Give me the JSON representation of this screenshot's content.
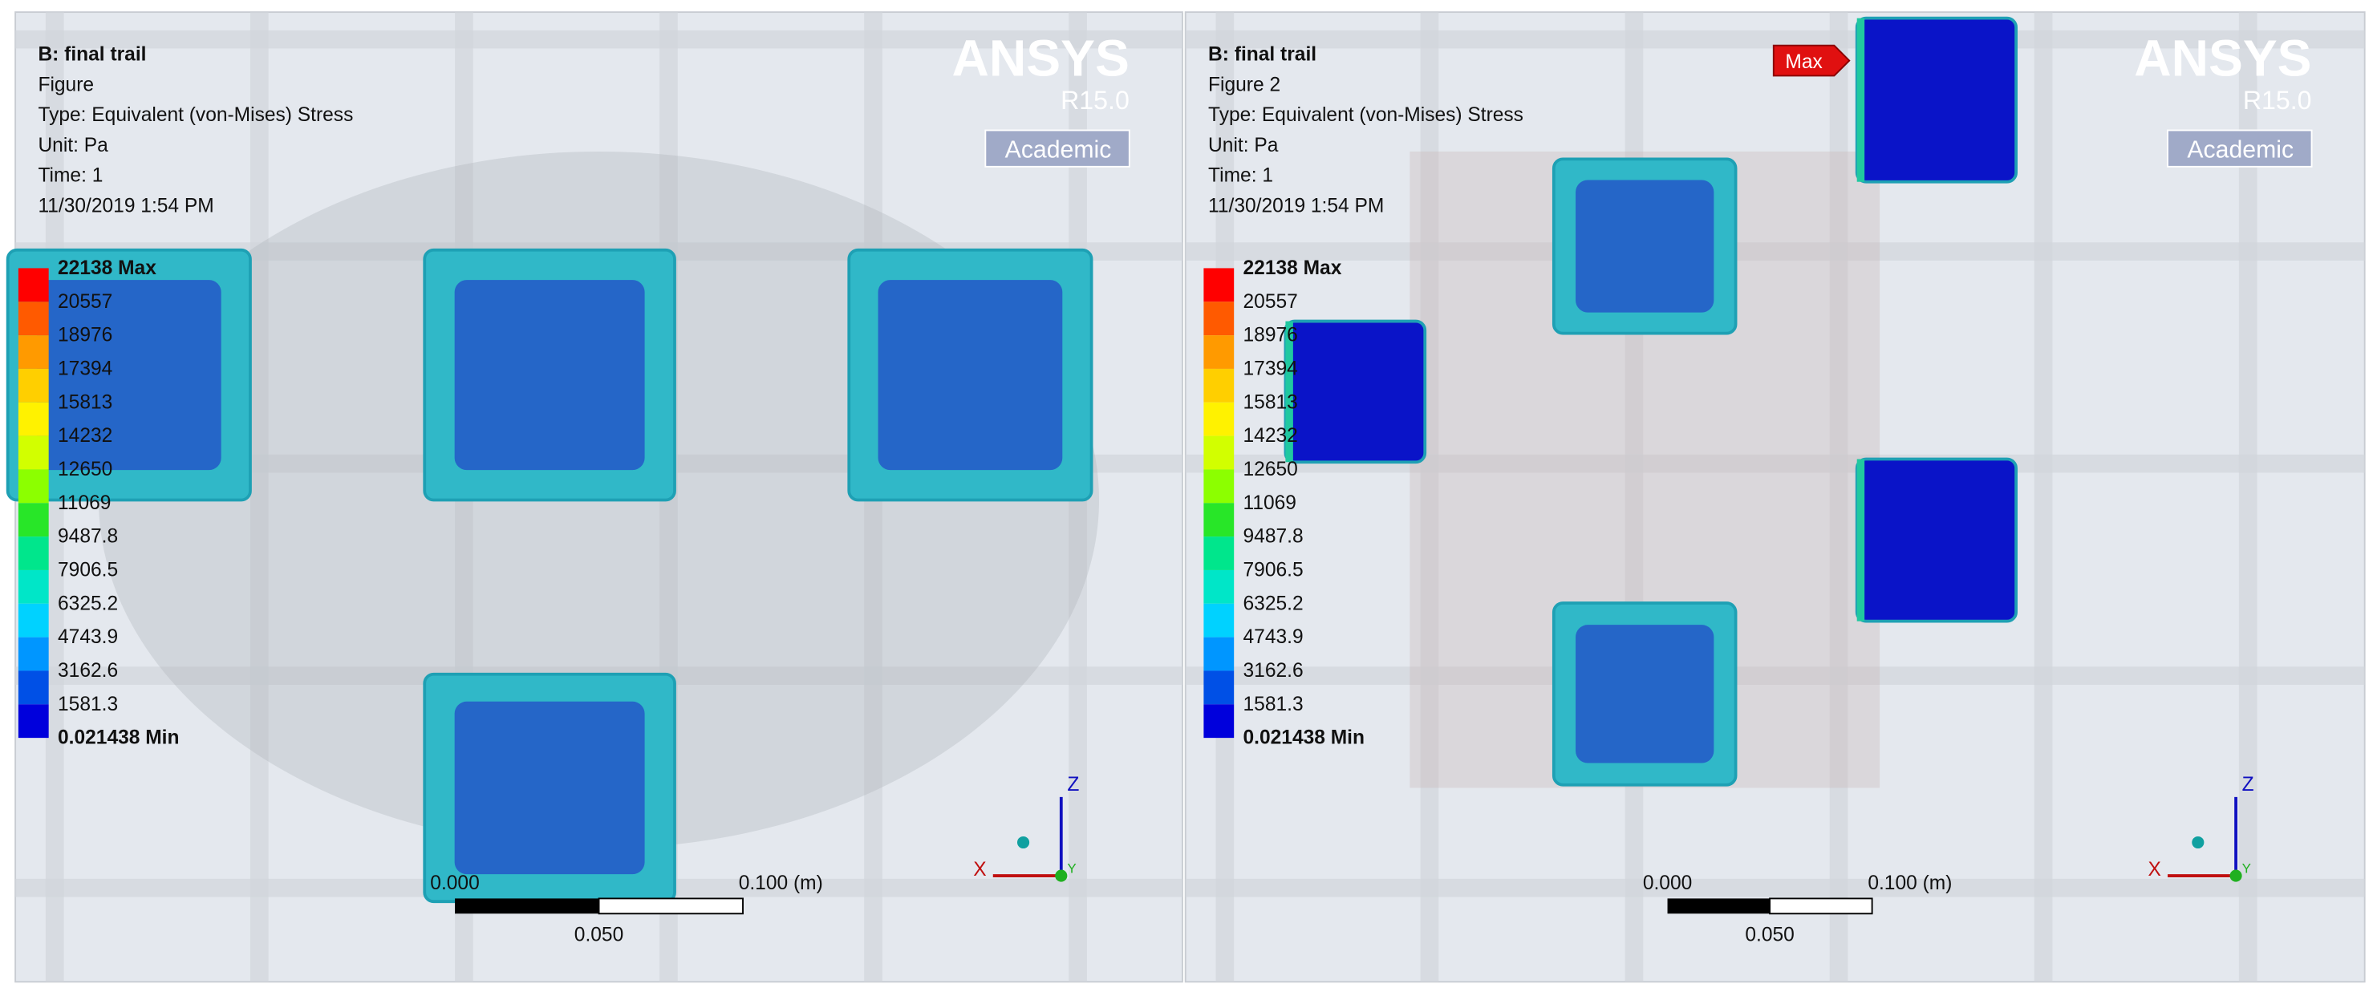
{
  "panels": [
    {
      "title": "B: final trail",
      "figure": "Figure",
      "type": "Type: Equivalent (von-Mises) Stress",
      "unit": "Unit: Pa",
      "time": "Time: 1",
      "date": "11/30/2019 1:54 PM",
      "logo": {
        "name": "ANSYS",
        "version": "R15.0",
        "edition": "Academic"
      },
      "legend": {
        "labels": [
          "22138 Max",
          "20557",
          "18976",
          "17394",
          "15813",
          "14232",
          "12650",
          "11069",
          "9487.8",
          "7906.5",
          "6325.2",
          "4743.9",
          "3162.6",
          "1581.3",
          "0.021438 Min"
        ],
        "colors": [
          "#ff0000",
          "#ff5a00",
          "#ff9a00",
          "#ffcf00",
          "#fff200",
          "#d2ff00",
          "#8cff00",
          "#28e628",
          "#00e68c",
          "#00e6c8",
          "#00d2ff",
          "#0096ff",
          "#0050e6",
          "#0000dc"
        ]
      },
      "scale": {
        "start": "0.000",
        "end": "0.100 (m)",
        "mid": "0.050"
      },
      "axes": {
        "z": "Z",
        "x": "X",
        "y": "Y"
      }
    },
    {
      "title": "B: final trail",
      "figure": "Figure 2",
      "type": "Type: Equivalent (von-Mises) Stress",
      "unit": "Unit: Pa",
      "time": "Time: 1",
      "date": "11/30/2019 1:54 PM",
      "logo": {
        "name": "ANSYS",
        "version": "R15.0",
        "edition": "Academic"
      },
      "legend": {
        "labels": [
          "22138 Max",
          "20557",
          "18976",
          "17394",
          "15813",
          "14232",
          "12650",
          "11069",
          "9487.8",
          "7906.5",
          "6325.2",
          "4743.9",
          "3162.6",
          "1581.3",
          "0.021438 Min"
        ],
        "colors": [
          "#ff0000",
          "#ff5a00",
          "#ff9a00",
          "#ffcf00",
          "#fff200",
          "#d2ff00",
          "#8cff00",
          "#28e628",
          "#00e68c",
          "#00e6c8",
          "#00d2ff",
          "#0096ff",
          "#0050e6",
          "#0000dc"
        ]
      },
      "scale": {
        "start": "0.000",
        "end": "0.100 (m)",
        "mid": "0.050"
      },
      "axes": {
        "z": "Z",
        "x": "X",
        "y": "Y"
      },
      "probe": "Max"
    }
  ]
}
